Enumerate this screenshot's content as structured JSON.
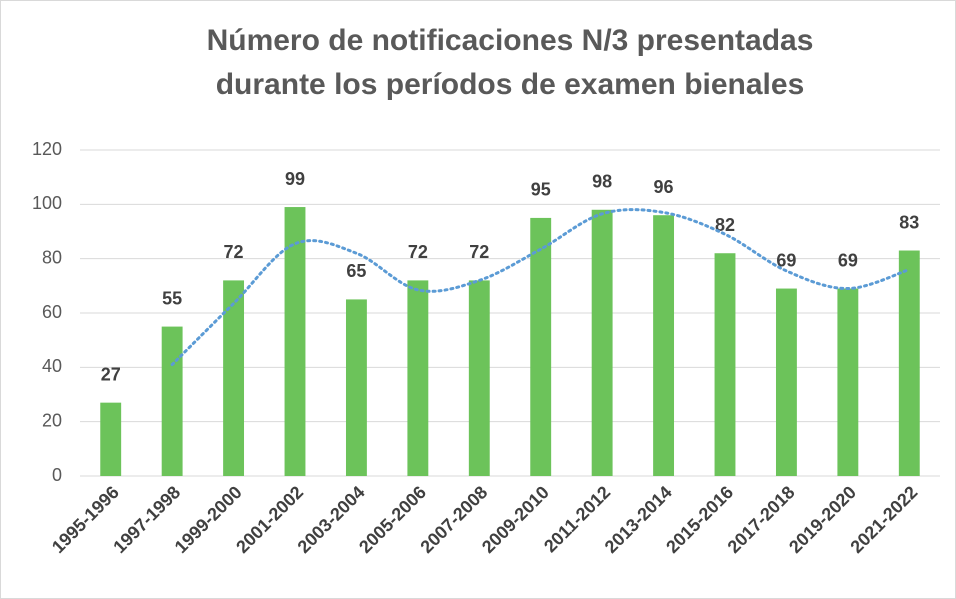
{
  "chart_data": {
    "type": "bar",
    "title": [
      "Número de notificaciones N/3 presentadas",
      "durante los períodos de examen bienales"
    ],
    "categories": [
      "1995-1996",
      "1997-1998",
      "1999-2000",
      "2001-2002",
      "2003-2004",
      "2005-2006",
      "2007-2008",
      "2009-2010",
      "2011-2012",
      "2013-2014",
      "2015-2016",
      "2017-2018",
      "2019-2020",
      "2021-2022"
    ],
    "values": [
      27,
      55,
      72,
      99,
      65,
      72,
      72,
      95,
      98,
      96,
      82,
      69,
      69,
      83
    ],
    "color": "#6cc35a",
    "trendline": {
      "type": "moving_average",
      "period": 2,
      "color": "#5b9bd5",
      "values": [
        null,
        41,
        63.5,
        85.5,
        82,
        68.5,
        72,
        83.5,
        96.5,
        97,
        89,
        75.5,
        69,
        76
      ]
    },
    "ylim": [
      0,
      120
    ],
    "yticks": [
      0,
      20,
      40,
      60,
      80,
      100,
      120
    ],
    "grid": true,
    "data_labels": true
  }
}
